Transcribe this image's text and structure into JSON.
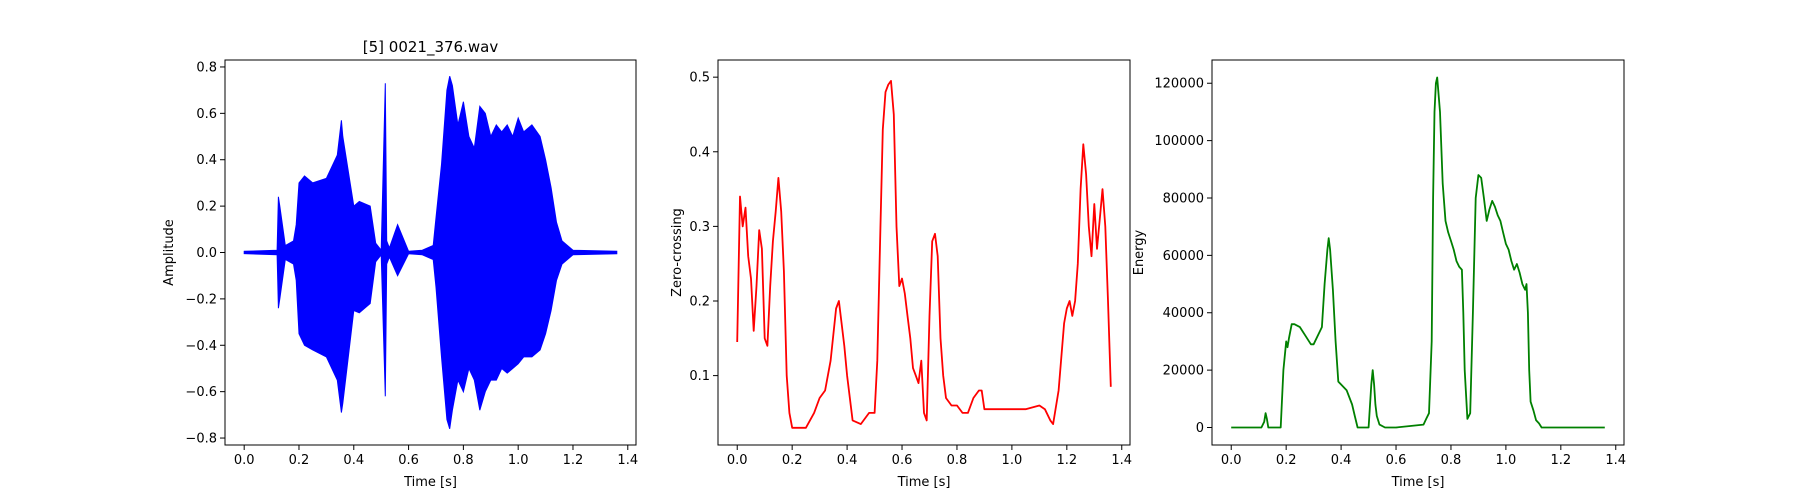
{
  "chart_data": [
    {
      "type": "line",
      "title": "[5] 0021_376.wav",
      "xlabel": "Time [s]",
      "ylabel": "Amplitude",
      "color": "#0000ff",
      "xlim": [
        -0.07,
        1.43
      ],
      "ylim": [
        -0.83,
        0.83
      ],
      "xticks": [
        0.0,
        0.2,
        0.4,
        0.6,
        0.8,
        1.0,
        1.2,
        1.4
      ],
      "yticks": [
        -0.8,
        -0.6,
        -0.4,
        -0.2,
        0.0,
        0.2,
        0.4,
        0.6,
        0.8
      ],
      "ytick_decimals": 1,
      "grid": false,
      "series": [
        {
          "style": "envelope",
          "x": [
            0.0,
            0.12,
            0.125,
            0.13,
            0.15,
            0.18,
            0.19,
            0.2,
            0.22,
            0.25,
            0.3,
            0.34,
            0.355,
            0.36,
            0.38,
            0.4,
            0.42,
            0.46,
            0.48,
            0.5,
            0.515,
            0.52,
            0.53,
            0.56,
            0.6,
            0.65,
            0.69,
            0.7,
            0.72,
            0.74,
            0.75,
            0.76,
            0.78,
            0.8,
            0.82,
            0.84,
            0.86,
            0.88,
            0.9,
            0.92,
            0.94,
            0.96,
            0.98,
            1.0,
            1.02,
            1.05,
            1.08,
            1.1,
            1.12,
            1.14,
            1.16,
            1.2,
            1.36
          ],
          "upper": [
            0.005,
            0.01,
            0.24,
            0.2,
            0.03,
            0.05,
            0.12,
            0.3,
            0.33,
            0.3,
            0.32,
            0.42,
            0.57,
            0.5,
            0.35,
            0.2,
            0.22,
            0.2,
            0.04,
            0.01,
            0.73,
            0.05,
            0.02,
            0.12,
            0.005,
            0.01,
            0.03,
            0.15,
            0.38,
            0.7,
            0.76,
            0.72,
            0.55,
            0.65,
            0.5,
            0.45,
            0.63,
            0.6,
            0.5,
            0.55,
            0.52,
            0.55,
            0.5,
            0.58,
            0.52,
            0.55,
            0.5,
            0.4,
            0.28,
            0.13,
            0.05,
            0.01,
            0.005
          ],
          "lower": [
            -0.005,
            -0.01,
            -0.24,
            -0.2,
            -0.03,
            -0.05,
            -0.12,
            -0.35,
            -0.4,
            -0.42,
            -0.45,
            -0.55,
            -0.69,
            -0.65,
            -0.45,
            -0.25,
            -0.26,
            -0.22,
            -0.04,
            -0.01,
            -0.62,
            -0.05,
            -0.02,
            -0.1,
            -0.005,
            -0.01,
            -0.03,
            -0.15,
            -0.45,
            -0.72,
            -0.76,
            -0.68,
            -0.55,
            -0.6,
            -0.5,
            -0.55,
            -0.68,
            -0.6,
            -0.55,
            -0.55,
            -0.5,
            -0.52,
            -0.5,
            -0.48,
            -0.45,
            -0.45,
            -0.42,
            -0.35,
            -0.25,
            -0.12,
            -0.05,
            -0.01,
            -0.005
          ]
        }
      ]
    },
    {
      "type": "line",
      "title": "",
      "xlabel": "Time [s]",
      "ylabel": "Zero-crossing",
      "color": "#ff0000",
      "xlim": [
        -0.07,
        1.43
      ],
      "ylim": [
        0.007,
        0.523
      ],
      "xticks": [
        0.0,
        0.2,
        0.4,
        0.6,
        0.8,
        1.0,
        1.2,
        1.4
      ],
      "yticks": [
        0.1,
        0.2,
        0.3,
        0.4,
        0.5
      ],
      "ytick_decimals": 1,
      "grid": false,
      "series": [
        {
          "style": "line",
          "x": [
            0.0,
            0.01,
            0.02,
            0.03,
            0.04,
            0.05,
            0.06,
            0.07,
            0.08,
            0.09,
            0.1,
            0.11,
            0.12,
            0.13,
            0.14,
            0.15,
            0.16,
            0.17,
            0.18,
            0.19,
            0.2,
            0.22,
            0.25,
            0.28,
            0.3,
            0.32,
            0.34,
            0.36,
            0.37,
            0.38,
            0.39,
            0.4,
            0.42,
            0.45,
            0.48,
            0.5,
            0.51,
            0.52,
            0.53,
            0.54,
            0.55,
            0.56,
            0.57,
            0.58,
            0.59,
            0.6,
            0.61,
            0.62,
            0.63,
            0.64,
            0.65,
            0.66,
            0.67,
            0.68,
            0.69,
            0.7,
            0.71,
            0.72,
            0.73,
            0.74,
            0.75,
            0.76,
            0.78,
            0.8,
            0.82,
            0.84,
            0.86,
            0.88,
            0.89,
            0.9,
            0.95,
            1.0,
            1.05,
            1.1,
            1.12,
            1.14,
            1.15,
            1.17,
            1.19,
            1.2,
            1.21,
            1.22,
            1.23,
            1.24,
            1.25,
            1.26,
            1.27,
            1.28,
            1.29,
            1.3,
            1.31,
            1.32,
            1.33,
            1.34,
            1.35,
            1.36
          ],
          "y": [
            0.145,
            0.34,
            0.3,
            0.325,
            0.26,
            0.23,
            0.16,
            0.22,
            0.295,
            0.27,
            0.15,
            0.14,
            0.22,
            0.28,
            0.32,
            0.365,
            0.32,
            0.24,
            0.1,
            0.05,
            0.03,
            0.03,
            0.03,
            0.05,
            0.07,
            0.08,
            0.12,
            0.19,
            0.2,
            0.17,
            0.14,
            0.1,
            0.04,
            0.035,
            0.05,
            0.05,
            0.12,
            0.28,
            0.43,
            0.48,
            0.49,
            0.495,
            0.45,
            0.3,
            0.22,
            0.23,
            0.21,
            0.18,
            0.15,
            0.11,
            0.1,
            0.09,
            0.12,
            0.05,
            0.04,
            0.18,
            0.28,
            0.29,
            0.26,
            0.15,
            0.1,
            0.07,
            0.06,
            0.06,
            0.05,
            0.05,
            0.07,
            0.08,
            0.08,
            0.055,
            0.055,
            0.055,
            0.055,
            0.06,
            0.055,
            0.04,
            0.035,
            0.08,
            0.17,
            0.19,
            0.2,
            0.18,
            0.2,
            0.25,
            0.35,
            0.41,
            0.37,
            0.3,
            0.26,
            0.33,
            0.27,
            0.31,
            0.35,
            0.3,
            0.2,
            0.085
          ]
        }
      ]
    },
    {
      "type": "line",
      "title": "",
      "xlabel": "Time [s]",
      "ylabel": "Energy",
      "color": "#008000",
      "xlim": [
        -0.07,
        1.43
      ],
      "ylim": [
        -6100,
        128100
      ],
      "xticks": [
        0.0,
        0.2,
        0.4,
        0.6,
        0.8,
        1.0,
        1.2,
        1.4
      ],
      "yticks": [
        0,
        20000,
        40000,
        60000,
        80000,
        100000,
        120000
      ],
      "ytick_decimals": 0,
      "grid": false,
      "series": [
        {
          "style": "line",
          "x": [
            0.0,
            0.11,
            0.12,
            0.125,
            0.13,
            0.135,
            0.16,
            0.18,
            0.19,
            0.2,
            0.205,
            0.21,
            0.22,
            0.23,
            0.25,
            0.27,
            0.29,
            0.3,
            0.33,
            0.34,
            0.35,
            0.355,
            0.36,
            0.37,
            0.38,
            0.39,
            0.4,
            0.42,
            0.44,
            0.45,
            0.46,
            0.48,
            0.5,
            0.51,
            0.515,
            0.52,
            0.525,
            0.53,
            0.54,
            0.56,
            0.6,
            0.7,
            0.71,
            0.72,
            0.73,
            0.735,
            0.74,
            0.745,
            0.75,
            0.76,
            0.77,
            0.78,
            0.79,
            0.8,
            0.81,
            0.82,
            0.83,
            0.84,
            0.845,
            0.85,
            0.86,
            0.87,
            0.88,
            0.89,
            0.9,
            0.91,
            0.92,
            0.93,
            0.94,
            0.95,
            0.96,
            0.97,
            0.98,
            0.99,
            1.0,
            1.01,
            1.02,
            1.03,
            1.04,
            1.05,
            1.06,
            1.07,
            1.075,
            1.08,
            1.085,
            1.09,
            1.1,
            1.11,
            1.12,
            1.13,
            1.15,
            1.2,
            1.3,
            1.36
          ],
          "y": [
            0,
            0,
            2000,
            5000,
            3000,
            0,
            0,
            0,
            20000,
            30000,
            28000,
            31000,
            36000,
            36000,
            35000,
            32000,
            29000,
            29000,
            35000,
            50000,
            62000,
            66000,
            62000,
            48000,
            30000,
            16000,
            15000,
            13000,
            8000,
            4000,
            0,
            0,
            0,
            15000,
            20000,
            15000,
            8000,
            4000,
            1000,
            0,
            0,
            1000,
            3000,
            5000,
            30000,
            80000,
            110000,
            120000,
            122000,
            110000,
            85000,
            72000,
            68000,
            65000,
            62000,
            58000,
            56000,
            55000,
            40000,
            20000,
            3000,
            5000,
            40000,
            80000,
            88000,
            87000,
            80000,
            72000,
            76000,
            79000,
            77000,
            74000,
            72000,
            68000,
            64000,
            62000,
            58000,
            55000,
            57000,
            54000,
            50000,
            48000,
            50000,
            40000,
            20000,
            9000,
            6000,
            2500,
            1500,
            0,
            0,
            0,
            0,
            0
          ]
        }
      ]
    }
  ]
}
